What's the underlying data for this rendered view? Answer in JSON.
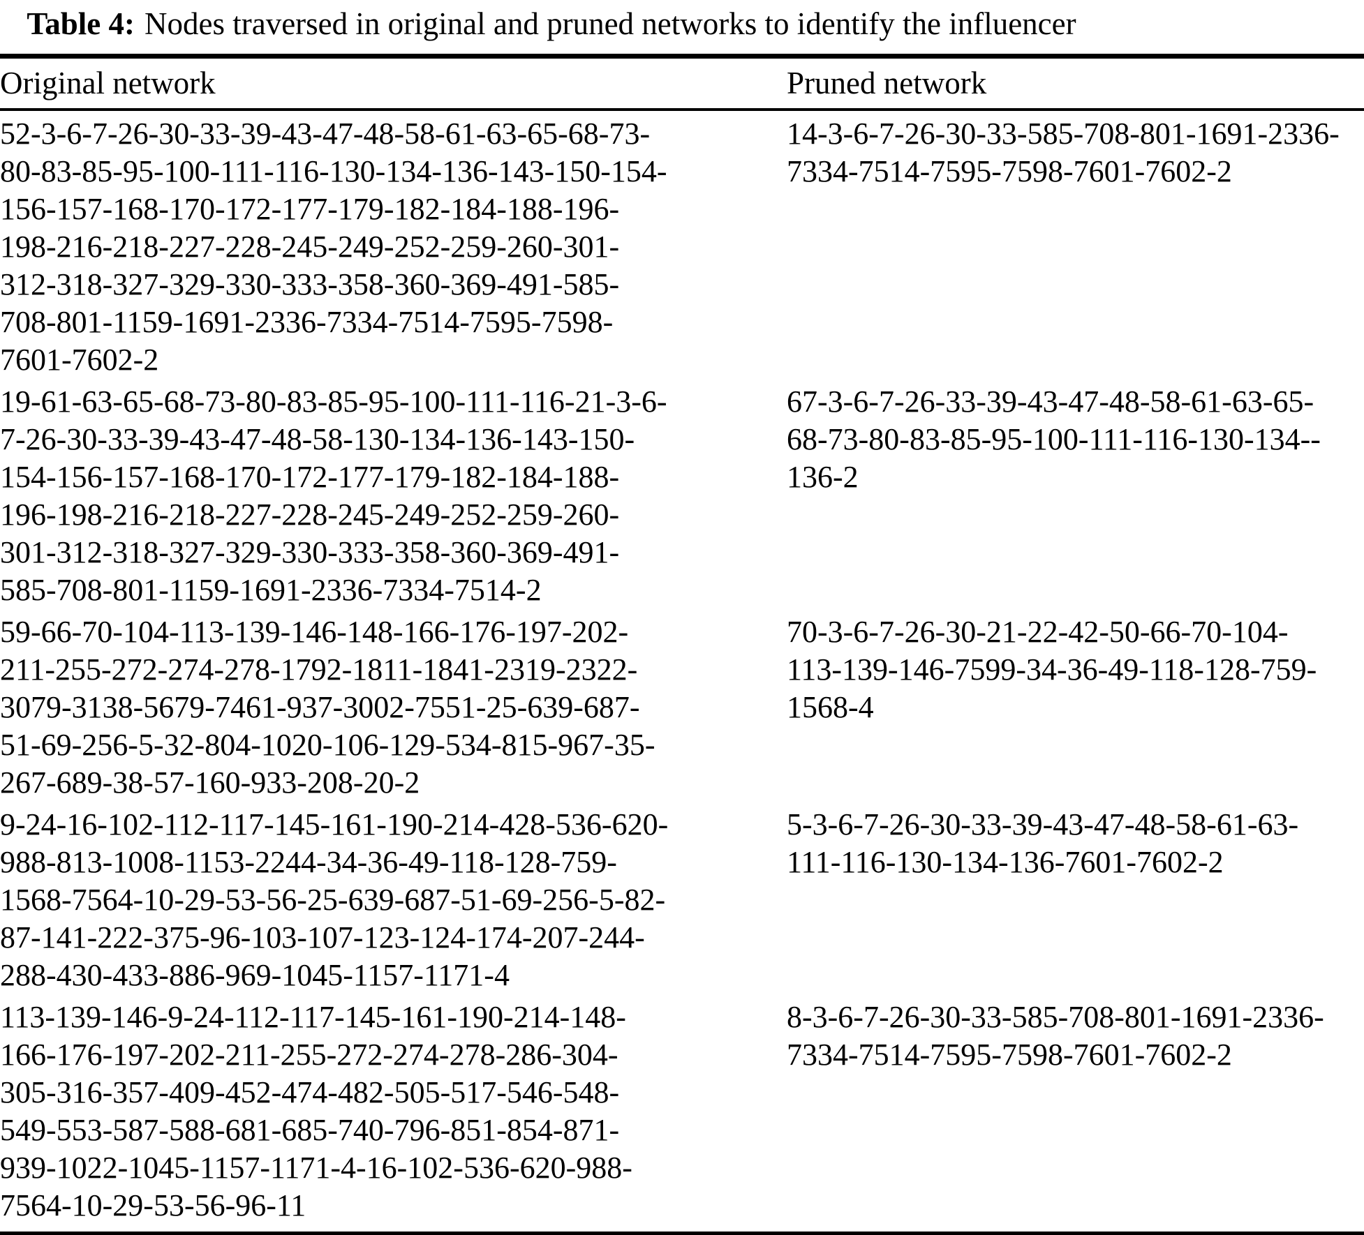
{
  "caption": {
    "label": "Table 4:",
    "text": "Nodes traversed in original and pruned networks to identify the influencer"
  },
  "table": {
    "headers": [
      "Original network",
      "Pruned network"
    ],
    "rows": [
      {
        "original": "52-3-6-7-26-30-33-39-43-47-48-58-61-63-65-68-73-\n80-83-85-95-100-111-116-130-134-136-143-150-154-\n156-157-168-170-172-177-179-182-184-188-196-\n198-216-218-227-228-245-249-252-259-260-301-\n312-318-327-329-330-333-358-360-369-491-585-\n708-801-1159-1691-2336-7334-7514-7595-7598-\n7601-7602-2",
        "pruned": "14-3-6-7-26-30-33-585-708-801-1691-2336-\n7334-7514-7595-7598-7601-7602-2"
      },
      {
        "original": "19-61-63-65-68-73-80-83-85-95-100-111-116-21-3-6-\n7-26-30-33-39-43-47-48-58-130-134-136-143-150-\n154-156-157-168-170-172-177-179-182-184-188-\n196-198-216-218-227-228-245-249-252-259-260-\n301-312-318-327-329-330-333-358-360-369-491-\n585-708-801-1159-1691-2336-7334-7514-2",
        "pruned": "67-3-6-7-26-33-39-43-47-48-58-61-63-65-\n68-73-80-83-85-95-100-111-116-130-134--\n136-2"
      },
      {
        "original": "59-66-70-104-113-139-146-148-166-176-197-202-\n211-255-272-274-278-1792-1811-1841-2319-2322-\n3079-3138-5679-7461-937-3002-7551-25-639-687-\n51-69-256-5-32-804-1020-106-129-534-815-967-35-\n267-689-38-57-160-933-208-20-2",
        "pruned": "70-3-6-7-26-30-21-22-42-50-66-70-104-\n113-139-146-7599-34-36-49-118-128-759-\n1568-4"
      },
      {
        "original": "9-24-16-102-112-117-145-161-190-214-428-536-620-\n988-813-1008-1153-2244-34-36-49-118-128-759-\n1568-7564-10-29-53-56-25-639-687-51-69-256-5-82-\n87-141-222-375-96-103-107-123-124-174-207-244-\n288-430-433-886-969-1045-1157-1171-4",
        "pruned": "5-3-6-7-26-30-33-39-43-47-48-58-61-63-\n111-116-130-134-136-7601-7602-2"
      },
      {
        "original": "113-139-146-9-24-112-117-145-161-190-214-148-\n166-176-197-202-211-255-272-274-278-286-304-\n305-316-357-409-452-474-482-505-517-546-548-\n549-553-587-588-681-685-740-796-851-854-871-\n939-1022-1045-1157-1171-4-16-102-536-620-988-\n7564-10-29-53-56-96-11",
        "pruned": "8-3-6-7-26-30-33-585-708-801-1691-2336-\n7334-7514-7595-7598-7601-7602-2"
      }
    ]
  },
  "colors": {
    "background": "#ffffff",
    "text": "#000000",
    "rule": "#000000"
  }
}
